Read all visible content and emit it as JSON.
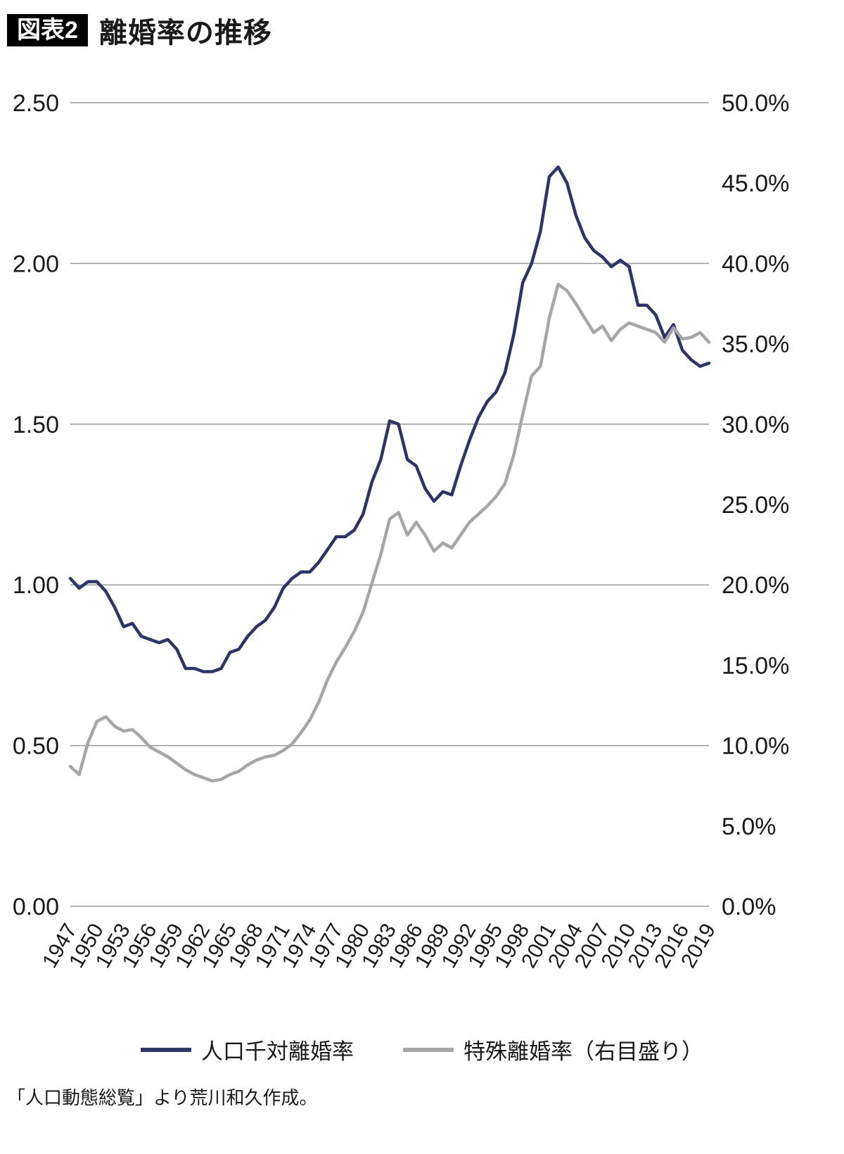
{
  "header": {
    "tag": "図表2",
    "title": "離婚率の推移"
  },
  "legend": [
    {
      "label": "人口千対離婚率",
      "color": "#2e3566"
    },
    {
      "label": "特殊離婚率（右目盛り）",
      "color": "#a6a6a6"
    }
  ],
  "footer": {
    "source": "「人口動態総覧」より荒川和久作成。"
  },
  "chart_data": {
    "type": "line",
    "title": "離婚率の推移",
    "grid": "horizontal",
    "legend_position": "bottom",
    "x_start": 1947,
    "x_end": 2019,
    "x_tick_labels": [
      "1947",
      "1950",
      "1953",
      "1956",
      "1959",
      "1962",
      "1965",
      "1968",
      "1971",
      "1974",
      "1977",
      "1980",
      "1983",
      "1986",
      "1989",
      "1992",
      "1995",
      "1998",
      "2001",
      "2004",
      "2007",
      "2010",
      "2013",
      "2016",
      "2019"
    ],
    "left_axis": {
      "range": [
        0,
        2.5
      ],
      "ticks": [
        0,
        0.5,
        1.0,
        1.5,
        2.0,
        2.5
      ],
      "labels": [
        "0.00",
        "0.50",
        "1.00",
        "1.50",
        "2.00",
        "2.50"
      ]
    },
    "right_axis": {
      "range": [
        0,
        50
      ],
      "ticks": [
        0,
        5,
        10,
        15,
        20,
        25,
        30,
        35,
        40,
        45,
        50
      ],
      "labels": [
        "0.0%",
        "5.0%",
        "10.0%",
        "15.0%",
        "20.0%",
        "25.0%",
        "30.0%",
        "35.0%",
        "40.0%",
        "45.0%",
        "50.0%"
      ]
    },
    "series": [
      {
        "name": "人口千対離婚率",
        "axis": "left",
        "color": "#2e3566",
        "values": [
          1.02,
          0.99,
          1.01,
          1.01,
          0.98,
          0.93,
          0.87,
          0.88,
          0.84,
          0.83,
          0.82,
          0.83,
          0.8,
          0.74,
          0.74,
          0.73,
          0.73,
          0.74,
          0.79,
          0.8,
          0.84,
          0.87,
          0.89,
          0.93,
          0.99,
          1.02,
          1.04,
          1.04,
          1.07,
          1.11,
          1.15,
          1.15,
          1.17,
          1.22,
          1.32,
          1.39,
          1.51,
          1.5,
          1.39,
          1.37,
          1.3,
          1.26,
          1.29,
          1.28,
          1.37,
          1.45,
          1.52,
          1.57,
          1.6,
          1.66,
          1.78,
          1.94,
          2.0,
          2.1,
          2.27,
          2.3,
          2.25,
          2.15,
          2.08,
          2.04,
          2.02,
          1.99,
          2.01,
          1.99,
          1.87,
          1.87,
          1.84,
          1.77,
          1.81,
          1.73,
          1.7,
          1.68,
          1.69
        ]
      },
      {
        "name": "特殊離婚率（右目盛り）",
        "axis": "right",
        "color": "#a6a6a6",
        "values": [
          8.7,
          8.2,
          10.2,
          11.5,
          11.8,
          11.2,
          10.9,
          11.0,
          10.5,
          9.9,
          9.6,
          9.3,
          8.9,
          8.5,
          8.2,
          8.0,
          7.8,
          7.9,
          8.2,
          8.4,
          8.8,
          9.1,
          9.3,
          9.4,
          9.7,
          10.1,
          10.8,
          11.6,
          12.7,
          14.1,
          15.2,
          16.1,
          17.1,
          18.3,
          20.1,
          21.9,
          24.1,
          24.5,
          23.1,
          23.9,
          23.1,
          22.1,
          22.6,
          22.3,
          23.1,
          23.9,
          24.4,
          24.9,
          25.5,
          26.3,
          28.1,
          30.6,
          33.0,
          33.6,
          36.6,
          38.7,
          38.3,
          37.5,
          36.6,
          35.7,
          36.1,
          35.2,
          35.9,
          36.3,
          36.1,
          35.9,
          35.7,
          35.1,
          36.0,
          35.3,
          35.4,
          35.7,
          35.1
        ]
      }
    ]
  }
}
